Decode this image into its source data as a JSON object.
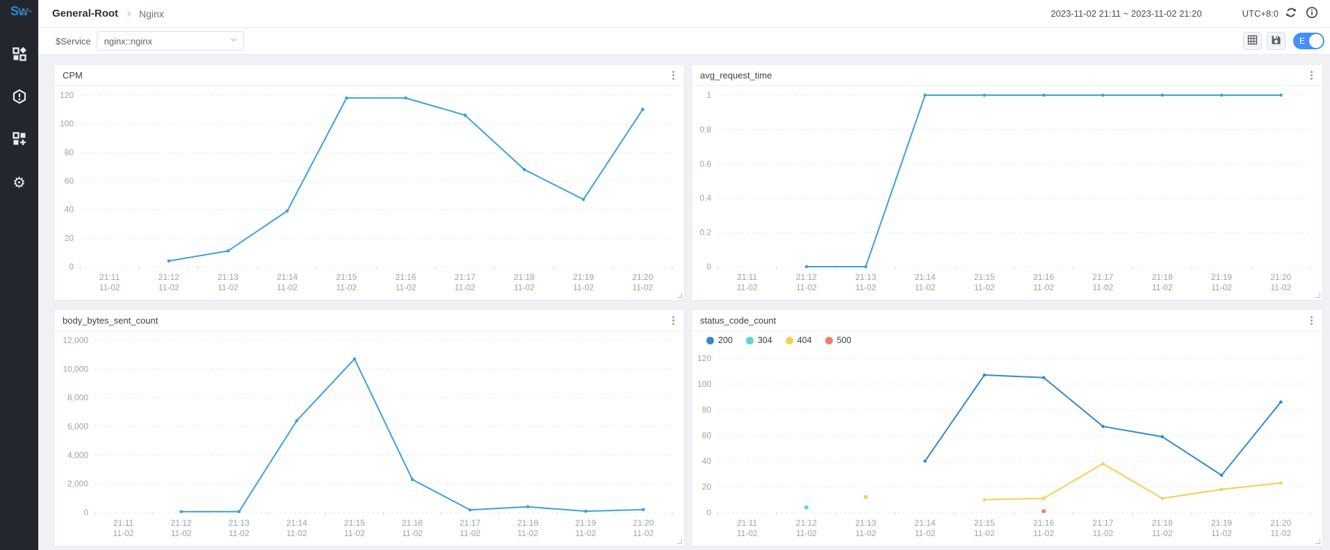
{
  "app": {
    "logo_text": "Sw"
  },
  "sidebar": {
    "items": [
      {
        "label": "dashboards",
        "icon": "dashboards-icon"
      },
      {
        "label": "alerting",
        "icon": "alert-hexagon-icon"
      },
      {
        "label": "marketplace",
        "icon": "widgets-plus-icon"
      },
      {
        "label": "settings",
        "icon": "gear-icon"
      }
    ]
  },
  "icons": {
    "settings_glyph": "⚙"
  },
  "header": {
    "breadcrumb": {
      "root": "General-Root",
      "current": "Nginx"
    },
    "time_range": "2023-11-02 21:11 ~ 2023-11-02 21:20",
    "timezone": "UTC+8:0"
  },
  "toolbar": {
    "service_label": "$Service",
    "service_value": "nginx::nginx",
    "edit_toggle_label": "E"
  },
  "colors": {
    "sidebar_bg": "#23272d",
    "accent_blue": "#4690f7",
    "line_blue": "#3ba0dc",
    "status_200": "#3389cb",
    "status_304": "#61d4cf",
    "status_404": "#f7cf4d",
    "status_500": "#f57c64"
  },
  "chart_data": [
    {
      "type": "line",
      "title": "CPM",
      "categories": [
        "21:11",
        "21:12",
        "21:13",
        "21:14",
        "21:15",
        "21:16",
        "21:17",
        "21:18",
        "21:19",
        "21:20"
      ],
      "date_label": "11-02",
      "ylim": [
        0,
        120
      ],
      "yticks": [
        0,
        20,
        40,
        60,
        80,
        100,
        120
      ],
      "ytick_labels": [
        "0",
        "20",
        "40",
        "60",
        "80",
        "100",
        "120"
      ],
      "grid": "dashed",
      "legend": false,
      "series": [
        {
          "name": "CPM",
          "color": "#3ba0dc",
          "values": [
            null,
            4,
            11,
            39,
            118,
            118,
            106,
            68,
            47,
            110
          ]
        }
      ]
    },
    {
      "type": "line",
      "title": "avg_request_time",
      "categories": [
        "21:11",
        "21:12",
        "21:13",
        "21:14",
        "21:15",
        "21:16",
        "21:17",
        "21:18",
        "21:19",
        "21:20"
      ],
      "date_label": "11-02",
      "ylim": [
        0,
        1
      ],
      "yticks": [
        0,
        0.2,
        0.4,
        0.6,
        0.8,
        1
      ],
      "ytick_labels": [
        "0",
        "0.2",
        "0.4",
        "0.6",
        "0.8",
        "1"
      ],
      "grid": "dashed",
      "legend": false,
      "series": [
        {
          "name": "avg_request_time",
          "color": "#3ba0dc",
          "values": [
            null,
            0,
            0,
            1,
            1,
            1,
            1,
            1,
            1,
            1
          ]
        }
      ]
    },
    {
      "type": "line",
      "title": "body_bytes_sent_count",
      "categories": [
        "21:11",
        "21:12",
        "21:13",
        "21:14",
        "21:15",
        "21:16",
        "21:17",
        "21:18",
        "21:19",
        "21:20"
      ],
      "date_label": "11-02",
      "ylim": [
        0,
        12000
      ],
      "yticks": [
        0,
        2000,
        4000,
        6000,
        8000,
        10000,
        12000
      ],
      "ytick_labels": [
        "0",
        "2,000",
        "4,000",
        "6,000",
        "8,000",
        "10,000",
        "12,000"
      ],
      "grid": "dashed",
      "legend": false,
      "series": [
        {
          "name": "body_bytes_sent_count",
          "color": "#3ba0dc",
          "values": [
            null,
            60,
            60,
            6400,
            10700,
            2300,
            180,
            400,
            90,
            200
          ]
        }
      ]
    },
    {
      "type": "line",
      "title": "status_code_count",
      "categories": [
        "21:11",
        "21:12",
        "21:13",
        "21:14",
        "21:15",
        "21:16",
        "21:17",
        "21:18",
        "21:19",
        "21:20"
      ],
      "date_label": "11-02",
      "ylim": [
        0,
        120
      ],
      "yticks": [
        0,
        20,
        40,
        60,
        80,
        100,
        120
      ],
      "ytick_labels": [
        "0",
        "20",
        "40",
        "60",
        "80",
        "100",
        "120"
      ],
      "grid": "dashed",
      "legend": true,
      "legend_position": "top-left",
      "series": [
        {
          "name": "200",
          "color": "#3389cb",
          "values": [
            null,
            null,
            null,
            40,
            107,
            105,
            67,
            59,
            29,
            86
          ]
        },
        {
          "name": "304",
          "color": "#61d4cf",
          "values": [
            null,
            4,
            null,
            null,
            null,
            null,
            null,
            null,
            null,
            null
          ]
        },
        {
          "name": "404",
          "color": "#f7cf4d",
          "values": [
            null,
            null,
            12,
            null,
            10,
            11,
            38,
            11,
            18,
            23
          ]
        },
        {
          "name": "500",
          "color": "#f57c64",
          "values": [
            null,
            null,
            null,
            null,
            null,
            1,
            null,
            null,
            null,
            null
          ]
        }
      ]
    }
  ]
}
